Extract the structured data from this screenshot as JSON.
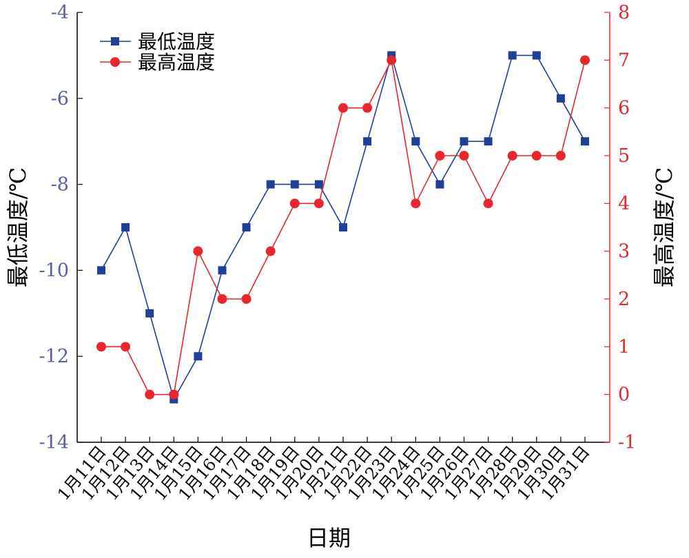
{
  "chart_data": {
    "type": "line",
    "xlabel": "日期",
    "categories": [
      "1月11日",
      "1月12日",
      "1月13日",
      "1月14日",
      "1月15日",
      "1月16日",
      "1月17日",
      "1月18日",
      "1月19日",
      "1月20日",
      "1月21日",
      "1月22日",
      "1月23日",
      "1月24日",
      "1月25日",
      "1月26日",
      "1月27日",
      "1月28日",
      "1月29日",
      "1月30日",
      "1月31日"
    ],
    "y_left": {
      "label": "最低温度/℃",
      "range": [
        -14,
        -4
      ],
      "ticks": [
        -14,
        -12,
        -10,
        -8,
        -6,
        -4
      ],
      "color": "#5b5ea6"
    },
    "y_right": {
      "label": "最高温度/℃",
      "range": [
        -1,
        8
      ],
      "ticks": [
        -1,
        0,
        1,
        2,
        3,
        4,
        5,
        6,
        7,
        8
      ],
      "color": "#e8262c"
    },
    "series": [
      {
        "name": "最低温度",
        "axis": "left",
        "color": "#1f3f99",
        "marker": "square",
        "values": [
          -10,
          -9,
          -11,
          -13,
          -12,
          -10,
          -9,
          -8,
          -8,
          -8,
          -9,
          -7,
          -5,
          -7,
          -8,
          -7,
          -7,
          -5,
          -5,
          -6,
          -7
        ]
      },
      {
        "name": "最高温度",
        "axis": "right",
        "color": "#e8262c",
        "marker": "circle",
        "values": [
          1,
          1,
          0,
          0,
          3,
          2,
          2,
          3,
          4,
          4,
          6,
          6,
          7,
          4,
          5,
          5,
          4,
          5,
          5,
          5,
          7
        ]
      }
    ],
    "legend_position": "top-left",
    "grid": false
  }
}
